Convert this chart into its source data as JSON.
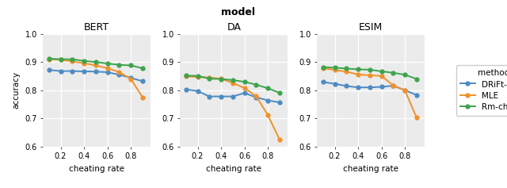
{
  "title": "model",
  "subplots": [
    "BERT",
    "DA",
    "ESIM"
  ],
  "xlabel": "cheating rate",
  "ylabel": "accuracy",
  "legend_title": "method",
  "methods": [
    "DRiFt-hypo",
    "MLE",
    "Rm-cheat"
  ],
  "colors": [
    "#4c8bc4",
    "#f0922b",
    "#3da44d"
  ],
  "x": [
    0.1,
    0.2,
    0.3,
    0.4,
    0.5,
    0.6,
    0.7,
    0.8,
    0.9
  ],
  "data": {
    "BERT": {
      "DRiFt-hypo": [
        0.872,
        0.868,
        0.868,
        0.867,
        0.866,
        0.864,
        0.855,
        0.844,
        0.832
      ],
      "MLE": [
        0.91,
        0.908,
        0.902,
        0.896,
        0.888,
        0.878,
        0.865,
        0.84,
        0.775
      ],
      "Rm-cheat": [
        0.912,
        0.91,
        0.91,
        0.904,
        0.9,
        0.895,
        0.89,
        0.888,
        0.878
      ]
    },
    "DA": {
      "DRiFt-hypo": [
        0.803,
        0.797,
        0.778,
        0.778,
        0.778,
        0.79,
        0.775,
        0.764,
        0.757
      ],
      "MLE": [
        0.849,
        0.847,
        0.845,
        0.841,
        0.826,
        0.808,
        0.779,
        0.712,
        0.625
      ],
      "Rm-cheat": [
        0.852,
        0.851,
        0.841,
        0.84,
        0.836,
        0.83,
        0.82,
        0.807,
        0.791
      ]
    },
    "ESIM": {
      "DRiFt-hypo": [
        0.829,
        0.823,
        0.815,
        0.81,
        0.81,
        0.812,
        0.816,
        0.8,
        0.783
      ],
      "MLE": [
        0.878,
        0.872,
        0.866,
        0.856,
        0.853,
        0.851,
        0.817,
        0.8,
        0.703
      ],
      "Rm-cheat": [
        0.882,
        0.88,
        0.877,
        0.874,
        0.873,
        0.867,
        0.862,
        0.855,
        0.84
      ]
    }
  },
  "ylim": [
    0.6,
    1.0
  ],
  "yticks": [
    0.6,
    0.7,
    0.8,
    0.9,
    1.0
  ],
  "xticks": [
    0.2,
    0.4,
    0.6,
    0.8
  ],
  "marker": "o",
  "markersize": 3.5,
  "linewidth": 1.4,
  "bg_color": "#ebebeb",
  "grid_color": "white",
  "title_fontsize": 9,
  "subplot_title_fontsize": 9,
  "label_fontsize": 7.5,
  "tick_fontsize": 7,
  "legend_fontsize": 7.5
}
